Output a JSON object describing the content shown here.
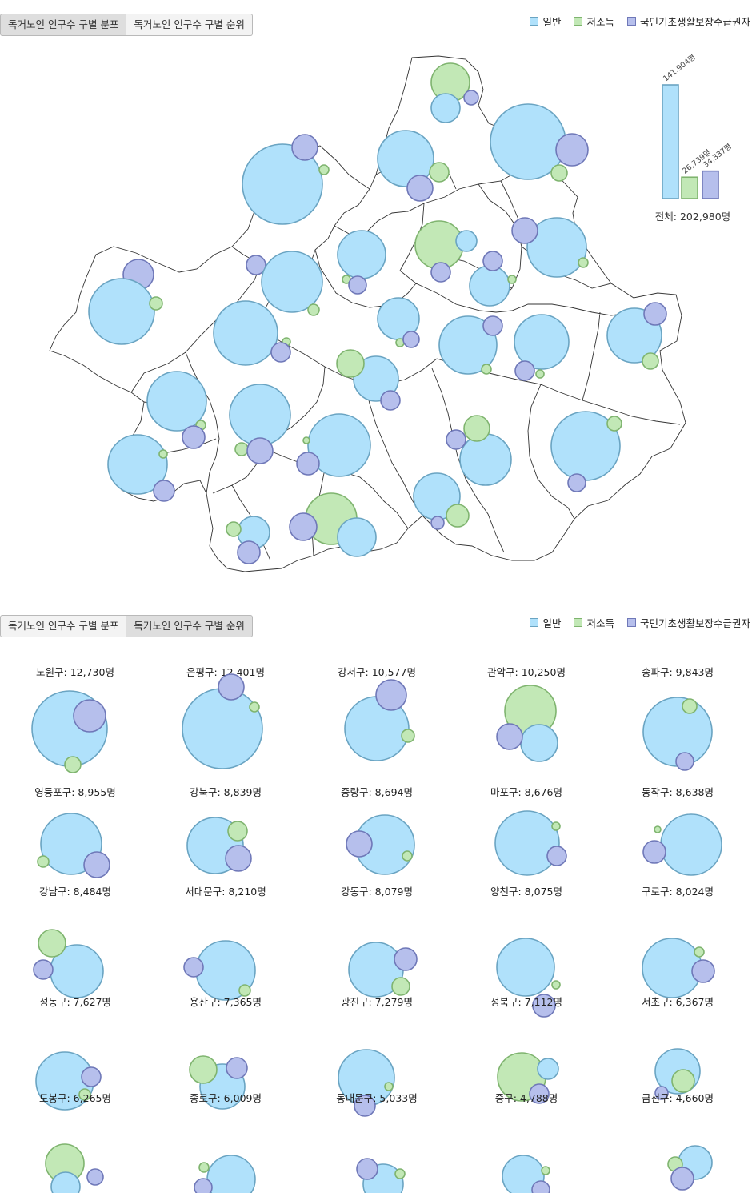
{
  "tabs": {
    "distribution": "독거노인 인구수 구별 분포",
    "ranking": "독거노인 인구수 구별 순위"
  },
  "legend": [
    {
      "label": "일반",
      "fill": "#b0e1fb",
      "stroke": "#6aa4c2"
    },
    {
      "label": "저소득",
      "fill": "#c2e8b6",
      "stroke": "#7fb46f"
    },
    {
      "label": "국민기초생활보장수급권자",
      "fill": "#b6bfec",
      "stroke": "#6f78b8"
    }
  ],
  "summary": {
    "bars": [
      {
        "category": "일반",
        "value": 141904,
        "label": "141,904명"
      },
      {
        "category": "저소득",
        "value": 26739,
        "label": "26,739명"
      },
      {
        "category": "국민기초생활보장수급권자",
        "value": 34337,
        "label": "34,337명"
      }
    ],
    "total_label": "전체: 202,980명"
  },
  "chart_data": [
    {
      "type": "bubble-map",
      "series": [
        "일반",
        "저소득",
        "국민기초생활보장수급권자"
      ],
      "totals": {
        "일반": 141904,
        "저소득": 26739,
        "국민기초생활보장수급권자": 34337,
        "전체": 202980
      }
    },
    {
      "type": "bubble-grid",
      "districts": [
        {
          "name": "노원구",
          "total": 12730,
          "label": "노원구: 12,730명"
        },
        {
          "name": "은평구",
          "total": 12401,
          "label": "은평구: 12,401명"
        },
        {
          "name": "강서구",
          "total": 10577,
          "label": "강서구: 10,577명"
        },
        {
          "name": "관악구",
          "total": 10250,
          "label": "관악구: 10,250명"
        },
        {
          "name": "송파구",
          "total": 9843,
          "label": "송파구: 9,843명"
        },
        {
          "name": "영등포구",
          "total": 8955,
          "label": "영등포구: 8,955명"
        },
        {
          "name": "강북구",
          "total": 8839,
          "label": "강북구: 8,839명"
        },
        {
          "name": "중랑구",
          "total": 8694,
          "label": "중랑구: 8,694명"
        },
        {
          "name": "마포구",
          "total": 8676,
          "label": "마포구: 8,676명"
        },
        {
          "name": "동작구",
          "total": 8638,
          "label": "동작구: 8,638명"
        },
        {
          "name": "강남구",
          "total": 8484,
          "label": "강남구: 8,484명"
        },
        {
          "name": "서대문구",
          "total": 8210,
          "label": "서대문구: 8,210명"
        },
        {
          "name": "강동구",
          "total": 8079,
          "label": "강동구: 8,079명"
        },
        {
          "name": "양천구",
          "total": 8075,
          "label": "양천구: 8,075명"
        },
        {
          "name": "구로구",
          "total": 8024,
          "label": "구로구: 8,024명"
        },
        {
          "name": "성동구",
          "total": 7627,
          "label": "성동구: 7,627명"
        },
        {
          "name": "용산구",
          "total": 7365,
          "label": "용산구: 7,365명"
        },
        {
          "name": "광진구",
          "total": 7279,
          "label": "광진구: 7,279명"
        },
        {
          "name": "성북구",
          "total": 7112,
          "label": "성북구: 7,112명"
        },
        {
          "name": "서초구",
          "total": 6367,
          "label": "서초구: 6,367명"
        },
        {
          "name": "도봉구",
          "total": 6265,
          "label": "도봉구: 6,265명"
        },
        {
          "name": "종로구",
          "total": 6009,
          "label": "종로구: 6,009명"
        },
        {
          "name": "동대문구",
          "total": 5033,
          "label": "동대문구: 5,033명"
        },
        {
          "name": "중구",
          "total": 4788,
          "label": "중구: 4,788명"
        },
        {
          "name": "금천구",
          "total": 4660,
          "label": "금천구: 4,660명"
        }
      ]
    }
  ]
}
